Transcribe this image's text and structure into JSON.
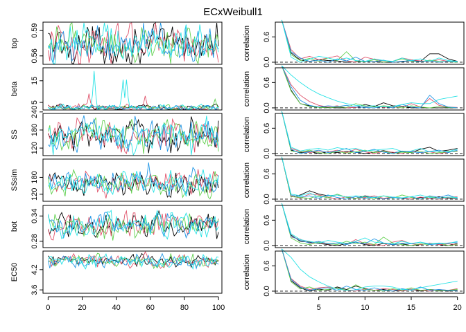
{
  "chart_data": {
    "type": "line",
    "title": "ECxWeibull1",
    "series_colors": [
      "#000000",
      "#df536b",
      "#61d04f",
      "#2297e6",
      "#28e2e5"
    ],
    "trace_panels": [
      {
        "ylabel": "top",
        "ticks": [
          "0.56",
          "0.59"
        ],
        "tick_values": [
          0.56,
          0.59
        ],
        "ylim": [
          0.55,
          0.6
        ],
        "center": 0.573,
        "spread": 0.011,
        "spikes": []
      },
      {
        "ylabel": "beta",
        "ticks": [
          "5",
          "15"
        ],
        "tick_values": [
          5,
          15
        ],
        "ylim": [
          1.5,
          21
        ],
        "center": 2.5,
        "spread": 0.7,
        "spikes": [
          {
            "series": 4,
            "x": 27,
            "height": 17
          },
          {
            "series": 4,
            "x": 44,
            "height": 13
          },
          {
            "series": 4,
            "x": 46,
            "height": 13
          },
          {
            "series": 1,
            "x": 24,
            "height": 6.5
          },
          {
            "series": 1,
            "x": 57,
            "height": 5.5
          },
          {
            "series": 2,
            "x": 98,
            "height": 4
          }
        ]
      },
      {
        "ylabel": "SS",
        "ticks": [
          "120",
          "180",
          "240"
        ],
        "tick_values": [
          120,
          180,
          240
        ],
        "ylim": [
          95,
          235
        ],
        "center": 160,
        "spread": 24,
        "spikes": []
      },
      {
        "ylabel": "SSsim",
        "ticks": [
          "120",
          "180"
        ],
        "tick_values": [
          120,
          180
        ],
        "ylim": [
          95,
          245
        ],
        "center": 158,
        "spread": 20,
        "spikes": [
          {
            "series": 3,
            "x": 59,
            "height": 75
          }
        ]
      },
      {
        "ylabel": "bot",
        "ticks": [
          "0.28",
          "0.34"
        ],
        "tick_values": [
          0.28,
          0.34
        ],
        "ylim": [
          0.265,
          0.365
        ],
        "center": 0.317,
        "spread": 0.014,
        "spikes": []
      },
      {
        "ylabel": "EC50",
        "ticks": [
          "3.6",
          "4.2"
        ],
        "tick_values": [
          3.6,
          4.2
        ],
        "ylim": [
          3.5,
          4.75
        ],
        "center": 4.45,
        "spread": 0.09,
        "spikes": []
      }
    ],
    "trace_x_ticks": [
      "0",
      "20",
      "40",
      "60",
      "80",
      "100"
    ],
    "trace_x_tick_values": [
      0,
      20,
      40,
      60,
      80,
      100
    ],
    "trace_xlim": [
      -3,
      102
    ],
    "iterations": 100,
    "acf_panels": [
      {
        "ylabel": "correlation",
        "ticks": [
          "0.0",
          "0.6"
        ],
        "tick_values": [
          0.0,
          0.6
        ],
        "ylim": [
          -0.05,
          0.95
        ],
        "series": [
          [
            1,
            0.22,
            0.05,
            0.02,
            0.06,
            0.04,
            0.03,
            0.0,
            0.01,
            0.02,
            0.01,
            0.0,
            0.0,
            0.01,
            0.04,
            0.02,
            0.2,
            0.2,
            0.08,
            0.02
          ],
          [
            1,
            0.3,
            0.08,
            0.14,
            0.06,
            0.1,
            0.15,
            0.03,
            0.0,
            0.12,
            0.07,
            0.03,
            0.02,
            0.1,
            0.06,
            0.03,
            0.02,
            0.06,
            0.02,
            0.01
          ],
          [
            1,
            0.18,
            0.04,
            0.09,
            0.02,
            0.1,
            0.04,
            0.25,
            0.03,
            0.01,
            0.06,
            0.0,
            0.02,
            0.08,
            0.02,
            0.01,
            0.05,
            0.02,
            0.01,
            0.0
          ],
          [
            1,
            0.25,
            0.1,
            0.02,
            0.05,
            0.0,
            0.08,
            0.03,
            0.12,
            0.02,
            0.01,
            0.05,
            0.0,
            0.02,
            0.04,
            0.01,
            0.03,
            0.0,
            0.02,
            0.01
          ],
          [
            1,
            0.12,
            0.0,
            0.07,
            0.14,
            0.1,
            0.05,
            0.1,
            0.04,
            0.02,
            0.08,
            0.04,
            0.02,
            0.1,
            0.04,
            0.08,
            0.02,
            0.1,
            0.04,
            0.02
          ]
        ]
      },
      {
        "ylabel": "correlation",
        "ticks": [
          "0.0",
          "0.6"
        ],
        "tick_values": [
          0.0,
          0.6
        ],
        "ylim": [
          -0.05,
          0.95
        ],
        "series": [
          [
            1,
            0.42,
            0.1,
            0.05,
            0.02,
            0.01,
            0.0,
            0.0,
            0.01,
            0.08,
            0.03,
            0.12,
            0.05,
            0.04,
            0.0,
            0.0,
            0.0,
            0.0,
            0.0,
            0.0
          ],
          [
            1,
            0.55,
            0.3,
            0.15,
            0.06,
            0.02,
            0.05,
            0.0,
            0.01,
            0.02,
            0.05,
            0.01,
            0.02,
            0.0,
            0.1,
            0.02,
            0.22,
            0.06,
            0.02,
            0.01
          ],
          [
            1,
            0.4,
            0.1,
            0.03,
            0.01,
            0.0,
            0.02,
            0.01,
            0.1,
            0.05,
            0.02,
            0.05,
            0.03,
            0.0,
            0.05,
            0.02,
            0.0,
            0.03,
            0.01,
            0.0
          ],
          [
            1,
            0.5,
            0.18,
            0.06,
            0.02,
            0.05,
            0.03,
            0.06,
            0.02,
            0.01,
            0.0,
            0.03,
            0.0,
            0.08,
            0.02,
            0.0,
            0.3,
            0.1,
            0.02,
            0.0
          ],
          [
            1,
            0.78,
            0.6,
            0.45,
            0.33,
            0.24,
            0.16,
            0.1,
            0.06,
            0.04,
            0.05,
            0.02,
            0.03,
            0.08,
            0.12,
            0.1,
            0.1,
            0.2,
            0.24,
            0.28
          ]
        ]
      },
      {
        "ylabel": "correlation",
        "ticks": [
          "0.0",
          "0.6"
        ],
        "tick_values": [
          0.0,
          0.6
        ],
        "ylim": [
          -0.05,
          0.95
        ],
        "series": [
          [
            1,
            0.08,
            0.02,
            0.05,
            0.0,
            0.04,
            0.02,
            0.05,
            0.03,
            0.0,
            0.03,
            0.07,
            0.02,
            0.04,
            0.02,
            0.1,
            0.15,
            0.05,
            0.08,
            0.12
          ],
          [
            1,
            0.12,
            0.05,
            0.02,
            0.06,
            0.03,
            0.08,
            0.02,
            0.1,
            0.04,
            0.0,
            0.05,
            0.03,
            0.0,
            0.06,
            0.02,
            0.04,
            0.0,
            0.03,
            0.06
          ],
          [
            1,
            0.06,
            0.03,
            0.08,
            0.02,
            0.0,
            0.05,
            0.01,
            0.04,
            0.08,
            0.02,
            0.06,
            0.0,
            0.03,
            0.02,
            0.05,
            0.0,
            0.02,
            0.04,
            0.05
          ],
          [
            1,
            0.1,
            0.0,
            0.04,
            0.08,
            0.02,
            0.06,
            0.12,
            0.02,
            0.05,
            0.1,
            0.03,
            0.0,
            0.06,
            0.04,
            0.02,
            0.05,
            0.08,
            0.02,
            0.08
          ],
          [
            1,
            0.15,
            0.06,
            0.1,
            0.12,
            0.08,
            0.14,
            0.1,
            0.12,
            0.06,
            0.08,
            0.1,
            0.12,
            0.05,
            0.06,
            0.12,
            0.04,
            0.06,
            0.05,
            0.1
          ]
        ]
      },
      {
        "ylabel": "correlation",
        "ticks": [
          "0.0",
          "0.6"
        ],
        "tick_values": [
          0.0,
          0.6
        ],
        "ylim": [
          -0.05,
          0.95
        ],
        "series": [
          [
            1,
            0.05,
            0.1,
            0.2,
            0.12,
            0.08,
            0.1,
            0.05,
            0.02,
            0.08,
            0.04,
            0.0,
            0.05,
            0.02,
            0.0,
            0.04,
            0.02,
            0.06,
            0.02,
            0.0
          ],
          [
            1,
            0.08,
            0.02,
            0.12,
            0.1,
            0.05,
            0.0,
            0.06,
            0.02,
            0.04,
            0.08,
            0.02,
            0.05,
            0.03,
            0.0,
            0.05,
            0.02,
            0.0,
            0.04,
            0.06
          ],
          [
            1,
            0.06,
            0.04,
            0.02,
            0.08,
            0.03,
            0.12,
            0.04,
            0.02,
            0.06,
            0.0,
            0.08,
            0.02,
            0.1,
            0.04,
            0.0,
            0.06,
            0.02,
            0.05,
            0.03
          ],
          [
            1,
            0.1,
            0.05,
            0.08,
            0.02,
            0.1,
            0.04,
            0.0,
            0.06,
            0.02,
            0.05,
            0.0,
            0.04,
            0.02,
            0.06,
            0.0,
            0.08,
            0.04,
            0.1,
            0.02
          ],
          [
            1,
            0.12,
            0.08,
            0.15,
            0.05,
            0.08,
            0.1,
            0.05,
            0.08,
            0.06,
            0.04,
            0.08,
            0.05,
            0.03,
            0.06,
            0.1,
            0.04,
            0.02,
            0.05,
            0.04
          ]
        ]
      },
      {
        "ylabel": "correlation",
        "ticks": [
          "0.0",
          "0.6"
        ],
        "tick_values": [
          0.0,
          0.6
        ],
        "ylim": [
          -0.05,
          0.95
        ],
        "series": [
          [
            1,
            0.25,
            0.1,
            0.08,
            0.05,
            0.02,
            0.0,
            0.04,
            0.08,
            0.02,
            0.0,
            0.05,
            0.02,
            0.04,
            0.0,
            0.02,
            0.05,
            0.02,
            0.0,
            0.05
          ],
          [
            1,
            0.2,
            0.15,
            0.05,
            0.08,
            0.03,
            0.06,
            0.02,
            0.14,
            0.04,
            0.02,
            0.0,
            0.08,
            0.12,
            0.04,
            0.02,
            0.06,
            0.02,
            0.04,
            0.02
          ],
          [
            1,
            0.18,
            0.06,
            0.02,
            0.08,
            0.05,
            0.02,
            0.1,
            0.04,
            0.08,
            0.02,
            0.2,
            0.06,
            0.02,
            0.0,
            0.04,
            0.02,
            0.06,
            0.0,
            0.02
          ],
          [
            1,
            0.22,
            0.12,
            0.06,
            0.1,
            0.04,
            0.06,
            0.02,
            0.08,
            0.04,
            0.16,
            0.06,
            0.02,
            0.05,
            0.04,
            0.08,
            0.02,
            0.04,
            0.06,
            0.08
          ],
          [
            1,
            0.28,
            0.14,
            0.1,
            0.06,
            0.12,
            0.08,
            0.05,
            0.1,
            0.18,
            0.08,
            0.06,
            0.04,
            0.1,
            0.05,
            0.08,
            0.04,
            0.06,
            0.05,
            0.1
          ]
        ]
      },
      {
        "ylabel": "correlation",
        "ticks": [
          "0.0",
          "0.6"
        ],
        "tick_values": [
          0.0,
          0.6
        ],
        "ylim": [
          -0.05,
          0.95
        ],
        "series": [
          [
            1,
            0.25,
            0.08,
            0.0,
            0.05,
            0.02,
            0.1,
            0.04,
            0.12,
            0.06,
            0.02,
            0.04,
            0.0,
            0.02,
            0.05,
            0.0,
            0.04,
            0.02,
            0.0,
            0.02
          ],
          [
            1,
            0.3,
            0.12,
            0.04,
            0.08,
            0.1,
            0.06,
            0.02,
            0.0,
            0.05,
            0.02,
            0.06,
            0.04,
            0.0,
            0.05,
            0.02,
            0.0,
            0.04,
            0.02,
            0.06
          ],
          [
            1,
            0.22,
            0.05,
            0.1,
            0.02,
            0.04,
            0.08,
            0.02,
            0.15,
            0.04,
            0.02,
            0.0,
            0.06,
            0.02,
            0.08,
            0.02,
            0.04,
            0.0,
            0.02,
            0.04
          ],
          [
            1,
            0.28,
            0.1,
            0.02,
            0.06,
            0.08,
            0.02,
            0.12,
            0.04,
            0.02,
            0.08,
            0.02,
            0.0,
            0.06,
            0.02,
            0.1,
            0.02,
            0.04,
            0.02,
            0.0
          ],
          [
            1,
            0.8,
            0.52,
            0.34,
            0.22,
            0.12,
            0.05,
            0.02,
            0.03,
            0.1,
            0.12,
            0.12,
            0.1,
            0.04,
            0.03,
            0.08,
            0.12,
            0.16,
            0.2,
            0.24
          ]
        ]
      }
    ],
    "acf_x_ticks": [
      "5",
      "10",
      "15",
      "20"
    ],
    "acf_x_tick_values": [
      5,
      10,
      15,
      20
    ],
    "acf_xlim": [
      0.3,
      20.7
    ]
  }
}
